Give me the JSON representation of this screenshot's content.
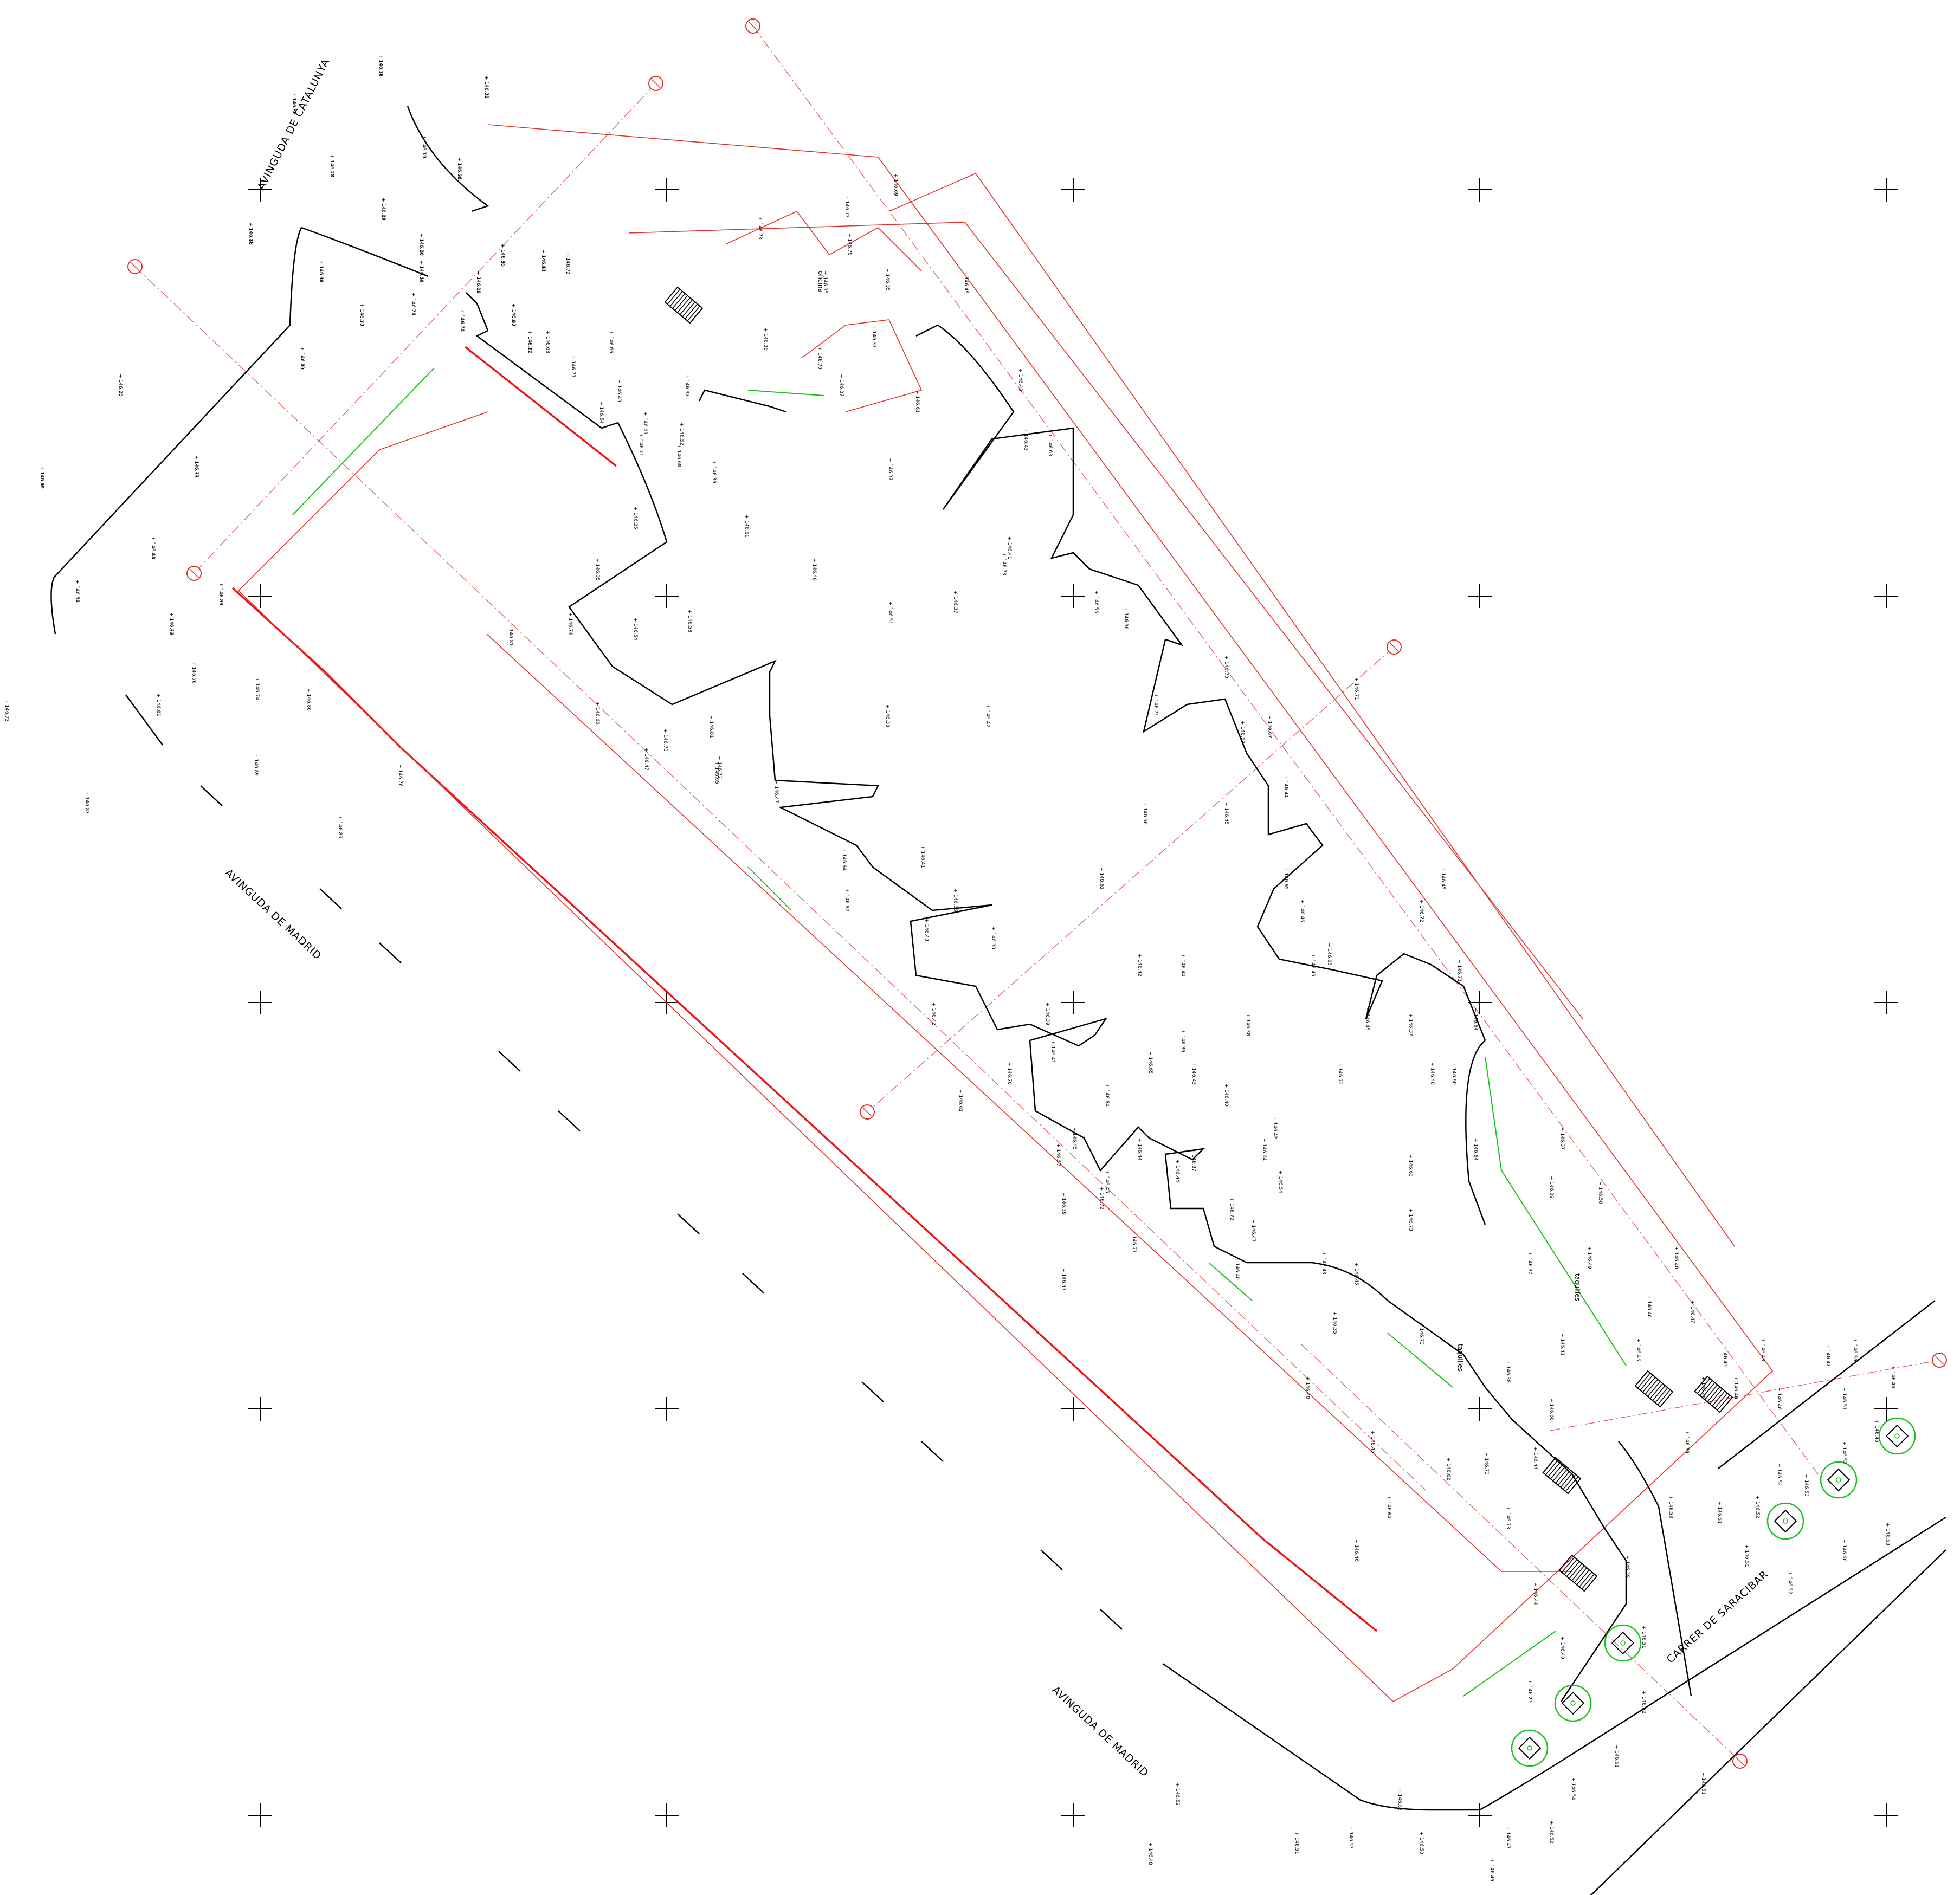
{
  "streets": [
    {
      "id": "avinguda-catalunya",
      "label": "AVINGUDA DE CATALUNYA"
    },
    {
      "id": "avinguda-madrid-1",
      "label": "AVINGUDA DE MADRID"
    },
    {
      "id": "avinguda-madrid-2",
      "label": "AVINGUDA DE MADRID"
    },
    {
      "id": "carrer-saracibar",
      "label": "CARRER DE SARACIBAR"
    }
  ],
  "rooms": [
    {
      "id": "oficina",
      "label": "oficina"
    },
    {
      "id": "taquilles-1",
      "label": "taquilles"
    },
    {
      "id": "taquilles-2",
      "label": "taquilles"
    }
  ],
  "spot_heights": [
    "+ 146.76",
    "+ 146.88",
    "+ 146.76",
    "+ 146.75",
    "+ 146.81",
    "+ 146.77",
    "+ 146.69",
    "+ 146.86",
    "+ 146.81",
    "+ 146.66",
    "+ 146.64",
    "+ 146.72",
    "+ 146.75",
    "+ 146.79",
    "+ 146.80",
    "+ 146.81",
    "+ 146.82",
    "+ 146.70",
    "+ 146.60",
    "+ 146.71",
    "+ 146.76",
    "+ 146.77",
    "+ 146.92",
    "+ 146.84",
    "+ 146.87",
    "+ 146.83",
    "+ 146.73",
    "+ 146.76",
    "+ 146.81",
    "+ 146.73",
    "+ 146.89",
    "+ 146.86",
    "+ 146.76",
    "+ 146.74",
    "+ 146.85",
    "+ 146.87",
    "+ 146.81",
    "+ 146.74",
    "+ 146.72",
    "+ 146.68",
    "+ 146.77",
    "+ 146.54",
    "+ 146.66",
    "+ 146.43",
    "+ 146.61",
    "+ 146.52",
    "+ 146.71",
    "+ 146.68",
    "+ 146.35",
    "+ 146.35",
    "+ 146.54",
    "+ 146.58",
    "+ 146.66",
    "+ 146.47",
    "+ 146.81",
    "+ 146.73",
    "+ 146.72",
    "+ 146.65",
    "+ 146.47",
    "+ 146.64",
    "+ 146.43",
    "+ 146.62",
    "+ 146.69",
    "+ 146.73",
    "+ 146.75",
    "+ 146.73",
    "+ 146.35",
    "+ 146.35",
    "+ 146.37",
    "+ 146.36",
    "+ 146.37",
    "+ 146.36",
    "+ 146.70",
    "+ 146.37",
    "+ 146.37",
    "+ 146.61",
    "+ 146.40",
    "+ 146.51",
    "+ 146.38",
    "+ 146.41",
    "+ 146.36",
    "+ 146.38",
    "+ 146.39",
    "+ 146.37",
    "+ 146.42",
    "+ 146.41",
    "+ 146.40",
    "+ 146.43",
    "+ 146.61",
    "+ 146.45",
    "+ 146.63",
    "+ 146.73",
    "+ 146.56",
    "+ 146.36",
    "+ 146.71",
    "+ 146.56",
    "+ 146.73",
    "+ 146.69",
    "+ 146.45",
    "+ 146.67",
    "+ 146.44",
    "+ 146.65",
    "+ 146.46",
    "+ 146.65",
    "+ 146.45",
    "+ 146.72",
    "+ 146.71",
    "+ 146.64",
    "+ 146.62",
    "+ 146.42",
    "+ 146.36",
    "+ 146.40",
    "+ 146.42",
    "+ 146.72",
    "+ 146.72",
    "+ 146.60",
    "+ 146.71",
    "+ 146.45",
    "+ 146.37",
    "+ 146.40",
    "+ 146.45",
    "+ 146.44",
    "+ 146.65",
    "+ 146.64",
    "+ 146.45",
    "+ 146.44",
    "+ 146.37",
    "+ 146.39",
    "+ 146.38",
    "+ 146.44",
    "+ 146.54",
    "+ 146.47",
    "+ 146.43",
    "+ 146.71",
    "+ 146.72",
    "+ 146.70",
    "+ 146.62",
    "+ 146.42",
    "+ 146.41",
    "+ 146.57",
    "+ 146.45",
    "+ 146.47",
    "+ 146.40",
    "+ 146.35",
    "+ 146.43",
    "+ 146.64",
    "+ 146.63",
    "+ 146.64",
    "+ 146.45",
    "+ 146.73",
    "+ 146.73",
    "+ 146.40",
    "+ 146.45",
    "+ 146.64",
    "+ 146.46",
    "+ 146.62",
    "+ 146.73",
    "+ 146.73",
    "+ 146.44",
    "+ 146.60",
    "+ 146.41",
    "+ 146.38",
    "+ 146.37",
    "+ 146.39",
    "+ 146.37",
    "+ 146.50",
    "+ 146.49",
    "+ 146.46",
    "+ 146.46",
    "+ 146.48",
    "+ 146.47",
    "+ 146.46",
    "+ 146.46",
    "+ 146.49",
    "+ 146.48",
    "+ 146.46",
    "+ 146.47",
    "+ 146.36",
    "+ 146.46",
    "+ 146.45",
    "+ 146.52",
    "+ 146.53",
    "+ 146.52",
    "+ 146.51",
    "+ 146.51",
    "+ 146.62",
    "+ 146.51",
    "+ 146.54",
    "+ 146.52",
    "+ 146.50",
    "+ 146.52",
    "+ 146.53",
    "+ 146.51",
    "+ 146.53",
    "+ 146.52",
    "+ 146.48",
    "+ 146.46",
    "+ 146.47",
    "+ 146.51",
    "+ 146.52",
    "+ 146.53",
    "+ 146.51",
    "+ 146.60",
    "+ 146.53",
    "+ 146.51",
    "+ 146.52",
    "+ 146.44",
    "+ 146.39",
    "+ 146.36",
    "+ 146.40",
    "+ 146.29",
    "+ 146.31",
    "+ 146.30",
    "+ 146.32",
    "+ 146.30",
    "+ 146.26",
    "+ 146.28",
    "+ 146.24",
    "+ 146.18",
    "+ 146.16",
    "+ 146.20",
    "+ 146.18",
    "+ 146.25",
    "+ 146.30",
    "+ 146.40",
    "+ 146.26",
    "+ 146.17",
    "+ 146.16",
    "+ 146.14",
    "+ 146.23",
    "+ 146.12",
    "+ 146.25",
    "+ 146.44",
    "+ 146.49",
    "+ 146.48",
    "+ 146.54",
    "+ 146.50",
    "+ 146.44"
  ],
  "colors": {
    "background": "#ffffff",
    "line_black": "#000000",
    "boundary_red": "#e8161a",
    "building_orange_red": "#e0302a",
    "axis_red": "#e06060",
    "vegetation_green": "#18c218"
  },
  "icons": [
    "grid-cross-icon",
    "axis-marker-icon",
    "tree-icon",
    "stair-icon",
    "arrow-icon",
    "manhole-icon"
  ]
}
